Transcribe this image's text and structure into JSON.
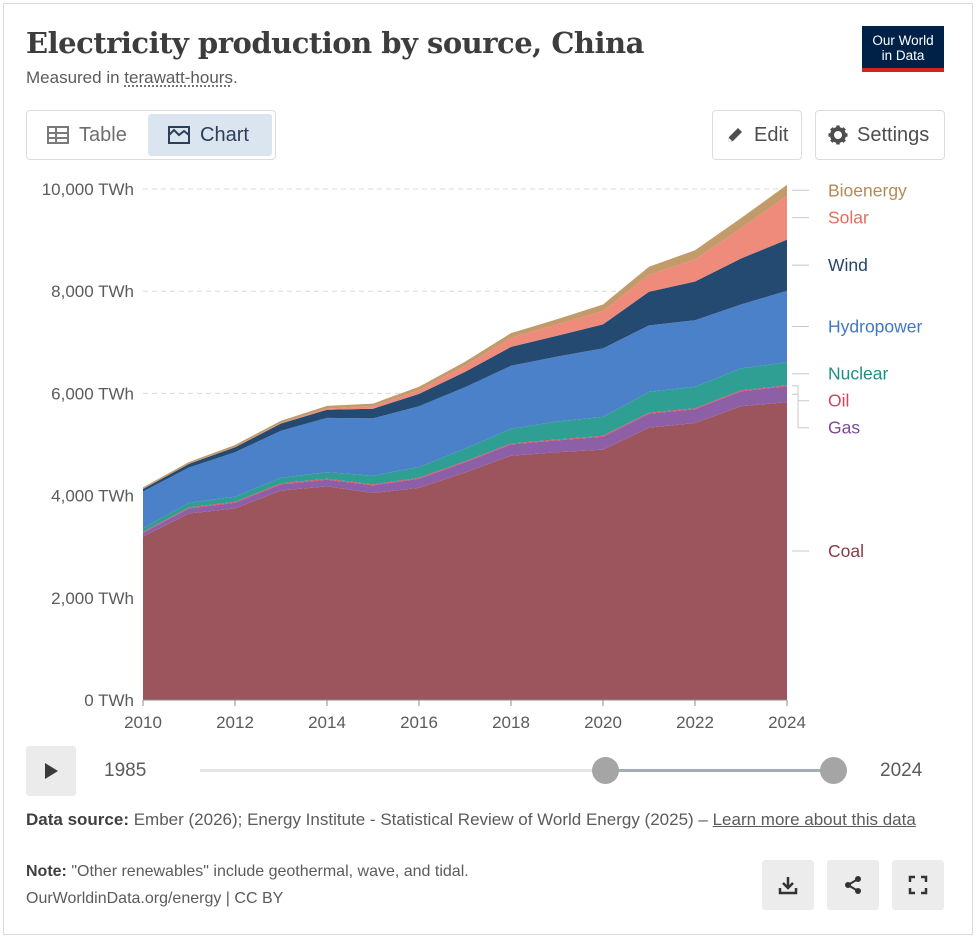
{
  "title": "Electricity production by source, China",
  "subtitle_prefix": "Measured in ",
  "subtitle_unit": "terawatt-hours",
  "subtitle_suffix": ".",
  "logo": {
    "line1": "Our World",
    "line2": "in Data"
  },
  "tabs": [
    {
      "label": "Table",
      "icon": "table-icon"
    },
    {
      "label": "Chart",
      "icon": "chart-icon",
      "active": true
    }
  ],
  "buttons": {
    "edit": "Edit",
    "settings": "Settings"
  },
  "timeline": {
    "start": "1985",
    "end": "2024",
    "play_icon": "play-icon"
  },
  "footer": {
    "source_label": "Data source:",
    "source_text": " Ember (2026); Energy Institute - Statistical Review of World Energy (2025) – ",
    "learn_more": "Learn more about this data",
    "note_label": "Note:",
    "note_text": " \"Other renewables\" include geothermal, wave, and tidal.",
    "credit": "OurWorldinData.org/energy | CC BY"
  },
  "footer_icons": [
    "download-icon",
    "share-icon",
    "fullscreen-icon"
  ],
  "chart_data": {
    "type": "area",
    "stacked": true,
    "x": [
      2010,
      2011,
      2012,
      2013,
      2014,
      2015,
      2016,
      2017,
      2018,
      2019,
      2020,
      2021,
      2022,
      2023,
      2024
    ],
    "xlim": [
      2010,
      2024
    ],
    "ylim": [
      0,
      10000
    ],
    "y_ticks": [
      0,
      2000,
      4000,
      6000,
      8000,
      10000
    ],
    "y_tick_labels": [
      "0 TWh",
      "2,000 TWh",
      "4,000 TWh",
      "6,000 TWh",
      "8,000 TWh",
      "10,000 TWh"
    ],
    "x_ticks": [
      2010,
      2012,
      2014,
      2016,
      2018,
      2020,
      2022,
      2024
    ],
    "grid": "horizontal dashed",
    "legend": "right, end of series",
    "series": [
      {
        "name": "Coal",
        "color": "#9c555d",
        "values": [
          3200,
          3650,
          3750,
          4100,
          4180,
          4050,
          4150,
          4450,
          4780,
          4850,
          4900,
          5330,
          5420,
          5750,
          5830
        ]
      },
      {
        "name": "Gas",
        "color": "#8d5fa6",
        "values": [
          70,
          100,
          110,
          120,
          130,
          150,
          180,
          200,
          220,
          230,
          250,
          270,
          270,
          290,
          310
        ]
      },
      {
        "name": "Oil",
        "color": "#d7566a",
        "values": [
          20,
          20,
          20,
          20,
          20,
          20,
          20,
          20,
          20,
          20,
          20,
          20,
          20,
          20,
          20
        ]
      },
      {
        "name": "Nuclear",
        "color": "#2e9f92",
        "values": [
          70,
          90,
          100,
          110,
          130,
          170,
          210,
          250,
          290,
          350,
          370,
          410,
          420,
          430,
          450
        ]
      },
      {
        "name": "Hydropower",
        "color": "#4b81c8",
        "values": [
          720,
          690,
          870,
          920,
          1060,
          1120,
          1190,
          1200,
          1230,
          1270,
          1340,
          1300,
          1300,
          1250,
          1400
        ]
      },
      {
        "name": "Wind",
        "color": "#254a72",
        "values": [
          50,
          70,
          95,
          140,
          160,
          190,
          240,
          300,
          370,
          410,
          470,
          660,
          760,
          900,
          1000
        ]
      },
      {
        "name": "Solar",
        "color": "#ee8b7a",
        "values": [
          1,
          3,
          5,
          10,
          25,
          45,
          75,
          120,
          180,
          220,
          260,
          330,
          430,
          590,
          860
        ]
      },
      {
        "name": "Bioenergy",
        "color": "#c39a69",
        "values": [
          30,
          35,
          40,
          45,
          50,
          55,
          65,
          80,
          90,
          100,
          130,
          160,
          180,
          200,
          210
        ]
      }
    ],
    "legend_order": [
      "Bioenergy",
      "Solar",
      "Wind",
      "Hydropower",
      "Nuclear",
      "Oil",
      "Gas",
      "Coal"
    ],
    "legend_colors": {
      "Bioenergy": "#b58a56",
      "Solar": "#e36e5d",
      "Wind": "#244767",
      "Hydropower": "#3f78c4",
      "Nuclear": "#1b8f83",
      "Oil": "#d4425a",
      "Gas": "#7b4a9a",
      "Coal": "#8a3a45"
    }
  }
}
